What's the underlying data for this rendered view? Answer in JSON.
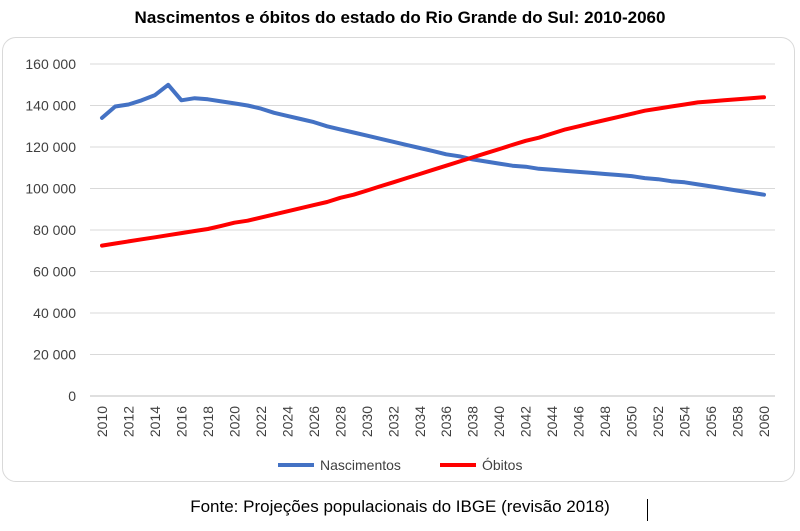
{
  "chart_data": {
    "type": "line",
    "title": "Nascimentos e óbitos do estado do Rio Grande do Sul: 2010-2060",
    "xlabel": "",
    "ylabel": "",
    "ylim": [
      0,
      160000
    ],
    "y_ticks": [
      "0",
      "20 000",
      "40 000",
      "60 000",
      "80 000",
      "100 000",
      "120 000",
      "140 000",
      "160 000"
    ],
    "x_ticks": [
      "2010",
      "2012",
      "2014",
      "2016",
      "2018",
      "2020",
      "2022",
      "2024",
      "2026",
      "2028",
      "2030",
      "2032",
      "2034",
      "2036",
      "2038",
      "2040",
      "2042",
      "2044",
      "2046",
      "2048",
      "2050",
      "2052",
      "2054",
      "2056",
      "2058",
      "2060"
    ],
    "grid": "horizontal",
    "legend_position": "bottom",
    "x": [
      2010,
      2011,
      2012,
      2013,
      2014,
      2015,
      2016,
      2017,
      2018,
      2019,
      2020,
      2021,
      2022,
      2023,
      2024,
      2025,
      2026,
      2027,
      2028,
      2029,
      2030,
      2031,
      2032,
      2033,
      2034,
      2035,
      2036,
      2037,
      2038,
      2039,
      2040,
      2041,
      2042,
      2043,
      2044,
      2045,
      2046,
      2047,
      2048,
      2049,
      2050,
      2051,
      2052,
      2053,
      2054,
      2055,
      2056,
      2057,
      2058,
      2059,
      2060
    ],
    "series": [
      {
        "name": "Nascimentos",
        "color": "#4472C4",
        "values": [
          134000,
          139500,
          140500,
          142500,
          145000,
          150000,
          142500,
          143500,
          143000,
          142000,
          141000,
          140000,
          138500,
          136500,
          135000,
          133500,
          132000,
          130000,
          128500,
          127000,
          125500,
          124000,
          122500,
          121000,
          119500,
          118000,
          116500,
          115500,
          114000,
          113000,
          112000,
          111000,
          110500,
          109500,
          109000,
          108500,
          108000,
          107500,
          107000,
          106500,
          106000,
          105000,
          104500,
          103500,
          103000,
          102000,
          101000,
          100000,
          99000,
          98000,
          97000
        ]
      },
      {
        "name": "Óbitos",
        "color": "#FF0000",
        "values": [
          72500,
          73500,
          74500,
          75500,
          76500,
          77500,
          78500,
          79500,
          80500,
          82000,
          83500,
          84500,
          86000,
          87500,
          89000,
          90500,
          92000,
          93500,
          95500,
          97000,
          99000,
          101000,
          103000,
          105000,
          107000,
          109000,
          111000,
          113000,
          115000,
          117000,
          119000,
          121000,
          123000,
          124500,
          126500,
          128500,
          130000,
          131500,
          133000,
          134500,
          136000,
          137500,
          138500,
          139500,
          140500,
          141500,
          142000,
          142500,
          143000,
          143500,
          144000
        ]
      }
    ]
  },
  "source_text": "Fonte: Projeções populacionais do IBGE (revisão 2018)"
}
